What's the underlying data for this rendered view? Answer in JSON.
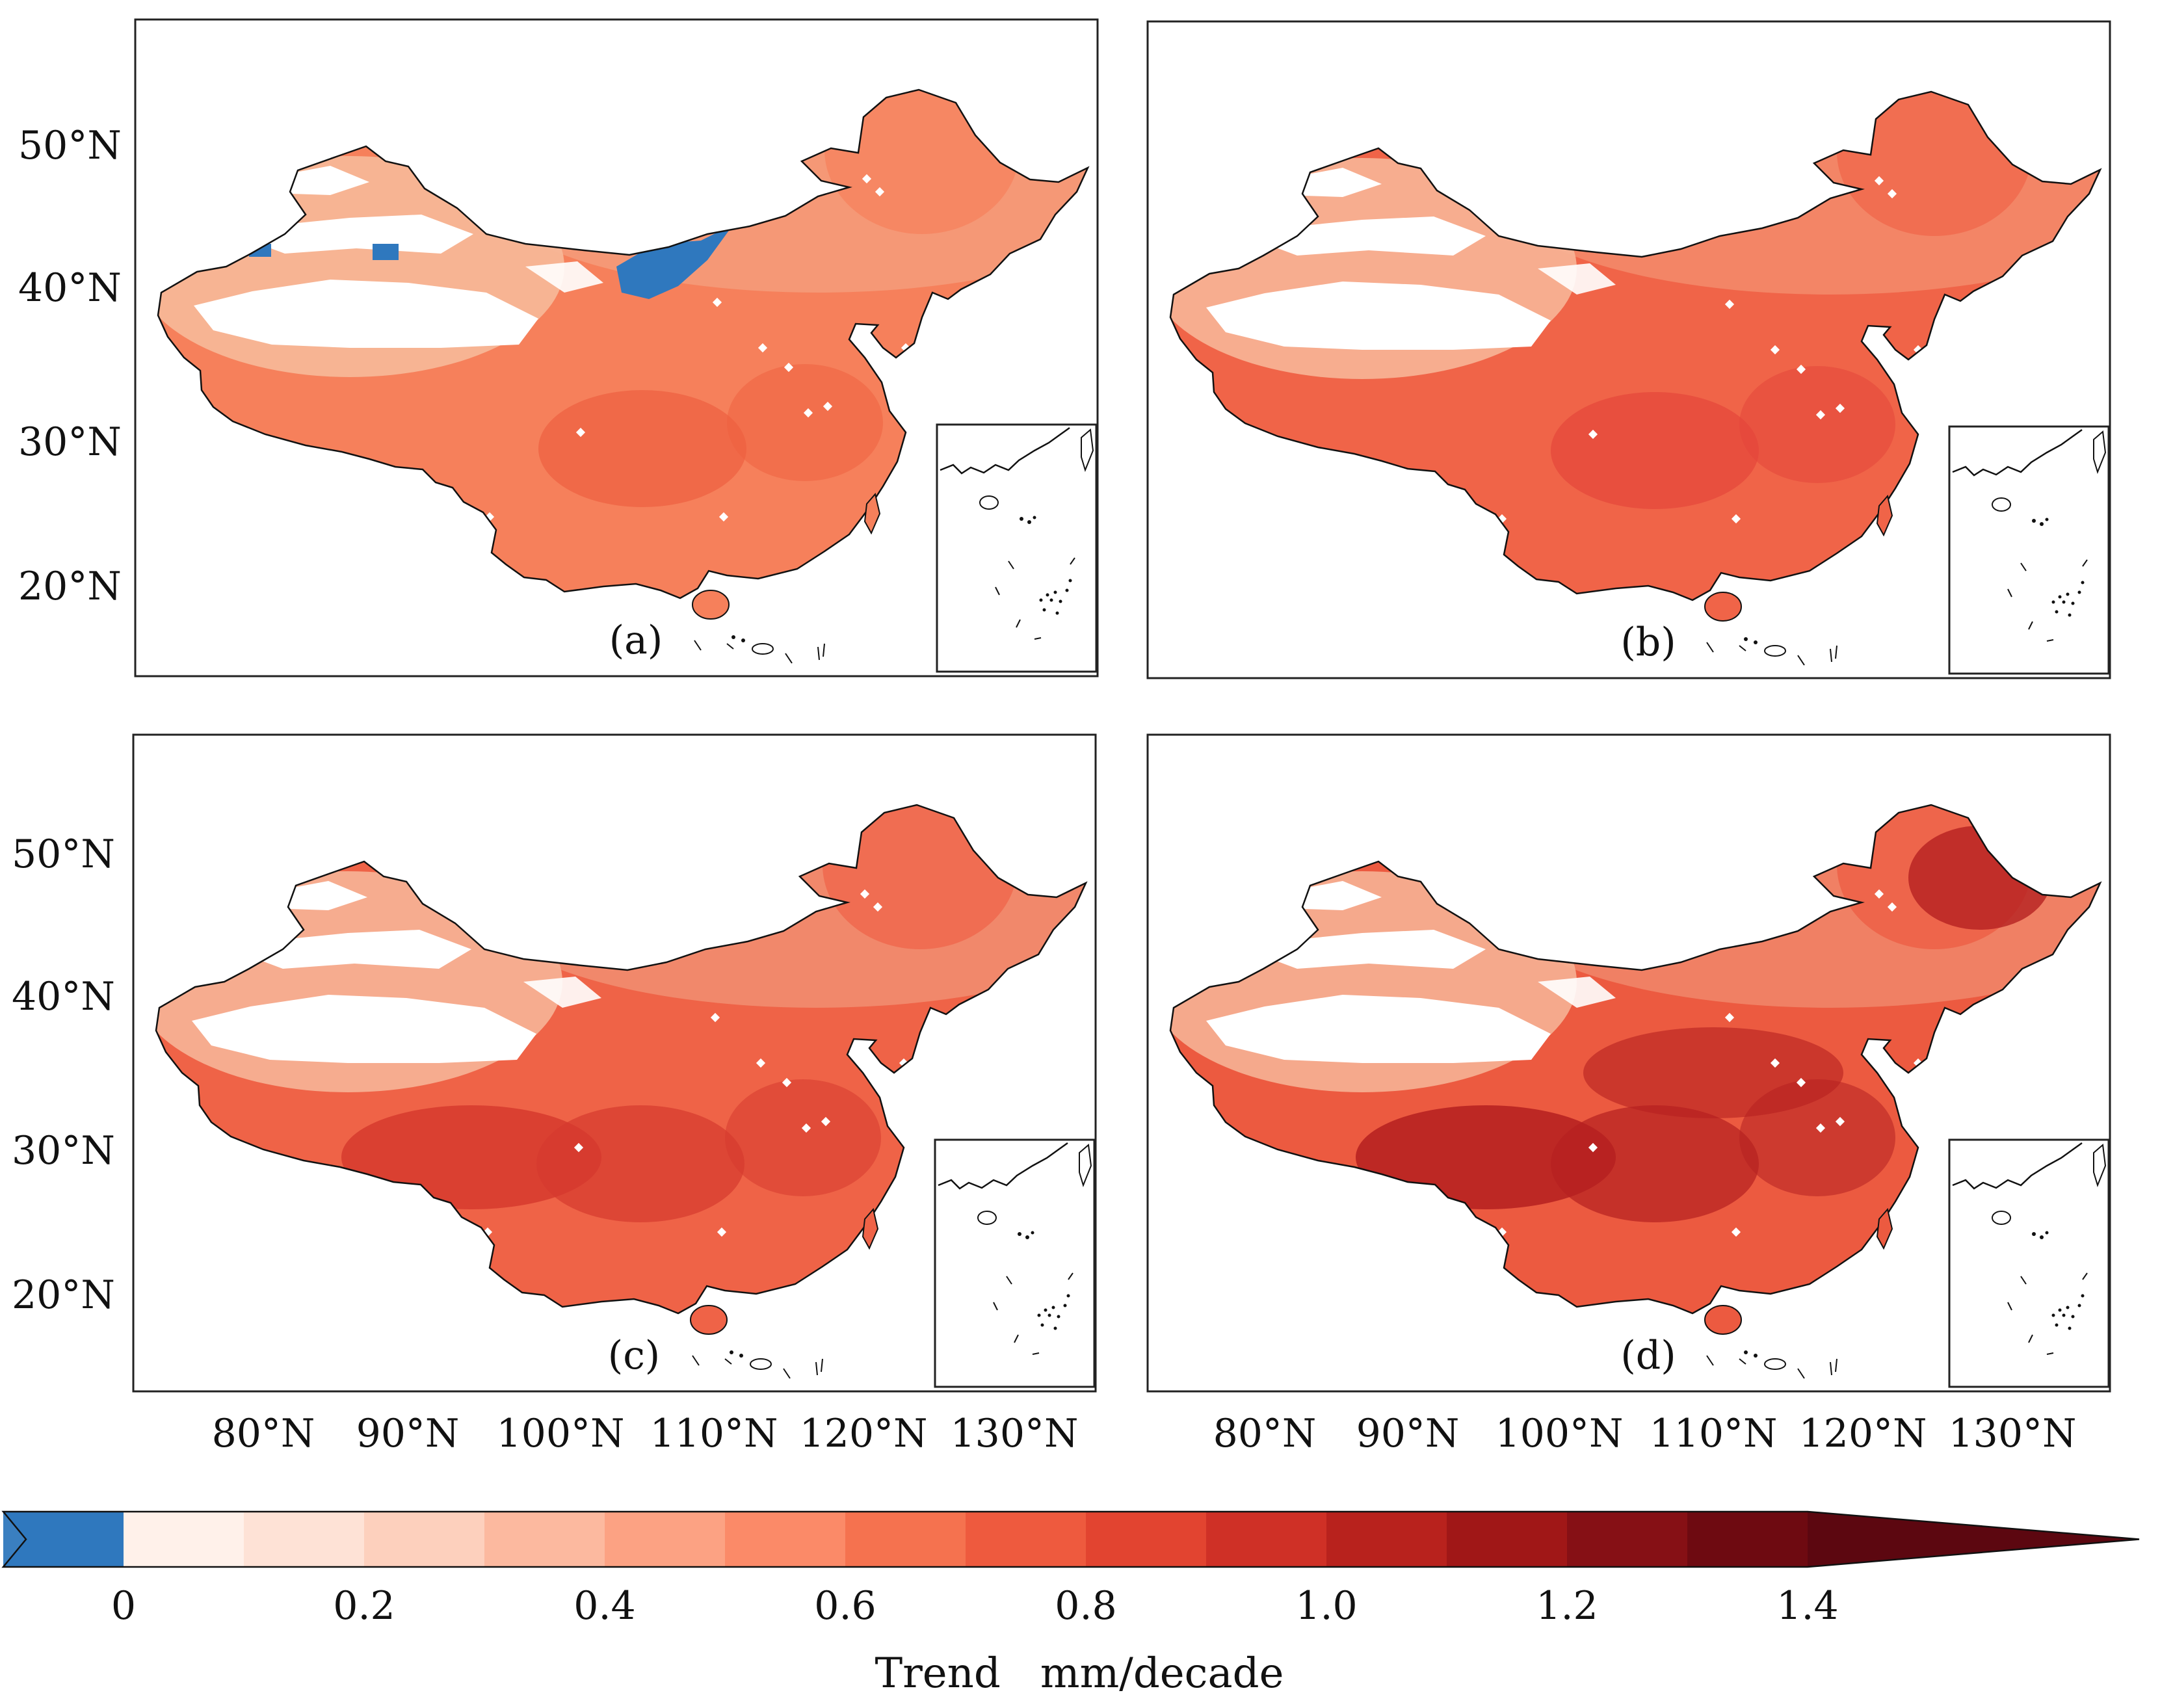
{
  "figure": {
    "panels": [
      {
        "id": "a",
        "label": "(a)"
      },
      {
        "id": "b",
        "label": "(b)"
      },
      {
        "id": "c",
        "label": "(c)"
      },
      {
        "id": "d",
        "label": "(d)"
      }
    ],
    "lat_labels": [
      "50°N",
      "40°N",
      "30°N",
      "20°N"
    ],
    "lon_labels": [
      "80°N",
      "90°N",
      "100°N",
      "110°N",
      "120°N",
      "130°N"
    ]
  },
  "colorbar": {
    "title": "Trend   mm/decade",
    "tick_labels": [
      "0",
      "0.2",
      "0.4",
      "0.6",
      "0.8",
      "1.0",
      "1.2",
      "1.4"
    ],
    "colors": {
      "under": "#3a7fc0",
      "below_zero": "#2f78be",
      "bins": [
        "#fff1ea",
        "#fee2d6",
        "#fdd0bd",
        "#fcb99f",
        "#fca283",
        "#fb8a68",
        "#f5724f",
        "#ee5a3e",
        "#e24430",
        "#cf3026",
        "#b8221d",
        "#a01717",
        "#861015",
        "#6e0a11"
      ],
      "over": "#5c0710"
    },
    "panel_fills": {
      "a": {
        "base": "#f6805b",
        "north": "#f4a07f",
        "northwest": "#f7b697",
        "hotspot": "#ee6040",
        "blue": "#2f78be"
      },
      "b": {
        "base": "#f06448",
        "north": "#f49070",
        "northwest": "#f7b193",
        "hotspot": "#e4463a"
      },
      "c": {
        "base": "#ef6347",
        "north": "#f19477",
        "northwest": "#f6b093",
        "hotspot": "#d63a2e"
      },
      "d": {
        "base": "#ec5a40",
        "north": "#f18e70",
        "northwest": "#f6ae90",
        "hotspot": "#b52020"
      }
    }
  }
}
